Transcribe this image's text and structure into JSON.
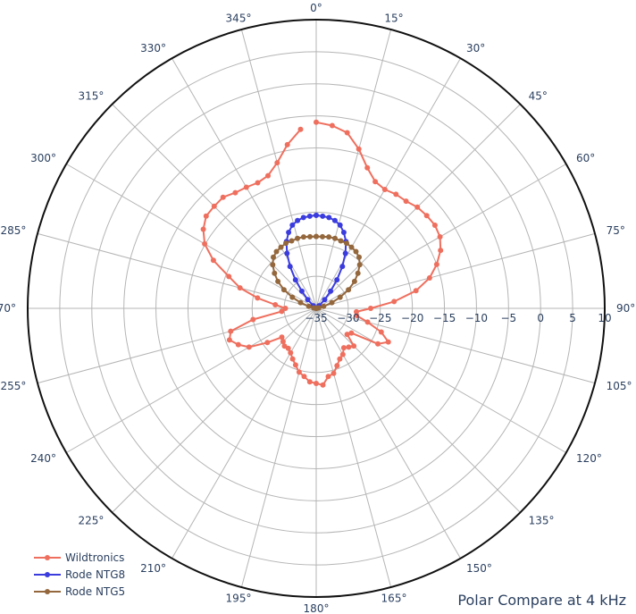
{
  "chart_data": {
    "type": "polar-line",
    "title": "Polar Compare at 4 kHz",
    "angular_axis": {
      "direction": "clockwise",
      "rotation_zero": "top",
      "tick_labels": [
        "0°",
        "15°",
        "30°",
        "45°",
        "60°",
        "75°",
        "90°",
        "105°",
        "120°",
        "135°",
        "150°",
        "165°",
        "180°",
        "195°",
        "210°",
        "225°",
        "240°",
        "255°",
        "270°",
        "285°",
        "300°",
        "315°",
        "330°",
        "345°"
      ]
    },
    "radial_axis": {
      "range": [
        -35,
        10
      ],
      "tick_values": [
        -35,
        -30,
        -25,
        -20,
        -15,
        -10,
        -5,
        0,
        5,
        10
      ],
      "tick_labels": [
        "−35",
        "−30",
        "−25",
        "−20",
        "−15",
        "−10",
        "−5",
        "0",
        "5",
        "10"
      ],
      "grid": true
    },
    "legend": {
      "placement": "bottom-left"
    },
    "series": [
      {
        "name": "Wildtronics",
        "color": "#ef6f5e",
        "points": [
          [
            0,
            -6
          ],
          [
            5,
            -6.4
          ],
          [
            10,
            -7.2
          ],
          [
            15,
            -9.3
          ],
          [
            20,
            -11.7
          ],
          [
            25,
            -13.2
          ],
          [
            30,
            -13.6
          ],
          [
            35,
            -13.3
          ],
          [
            40,
            -13.2
          ],
          [
            45,
            -12.7
          ],
          [
            50,
            -12.5
          ],
          [
            55,
            -12.4
          ],
          [
            60,
            -12.7
          ],
          [
            65,
            -13.6
          ],
          [
            70,
            -15
          ],
          [
            75,
            -16.7
          ],
          [
            80,
            -19.2
          ],
          [
            85,
            -22.8
          ],
          [
            90,
            -26.5
          ],
          [
            95,
            -28.7
          ],
          [
            100,
            -28.6
          ],
          [
            105,
            -26.7
          ],
          [
            110,
            -24.2
          ],
          [
            115,
            -22.6
          ],
          [
            120,
            -23.9
          ],
          [
            125,
            -28.3
          ],
          [
            130,
            -28.7
          ],
          [
            135,
            -26.7
          ],
          [
            140,
            -27.1
          ],
          [
            145,
            -27.5
          ],
          [
            150,
            -26.7
          ],
          [
            155,
            -26.3
          ],
          [
            160,
            -25.5
          ],
          [
            165,
            -24.5
          ],
          [
            170,
            -24.2
          ],
          [
            175,
            -23
          ],
          [
            180,
            -23.3
          ],
          [
            185,
            -23.5
          ],
          [
            190,
            -24.2
          ],
          [
            195,
            -24.7
          ],
          [
            200,
            -25.6
          ],
          [
            205,
            -26.3
          ],
          [
            210,
            -27
          ],
          [
            215,
            -27.4
          ],
          [
            220,
            -27.3
          ],
          [
            225,
            -27.7
          ],
          [
            230,
            -28
          ],
          [
            235,
            -25.7
          ],
          [
            240,
            -22.9
          ],
          [
            245,
            -21.6
          ],
          [
            250,
            -20.6
          ],
          [
            255,
            -21.2
          ],
          [
            260,
            -25
          ],
          [
            265,
            -29.6
          ],
          [
            270,
            -30.2
          ],
          [
            275,
            -28.6
          ],
          [
            280,
            -25.7
          ],
          [
            285,
            -22.7
          ],
          [
            290,
            -20.5
          ],
          [
            295,
            -17.3
          ],
          [
            300,
            -14.9
          ],
          [
            305,
            -13.5
          ],
          [
            310,
            -12.6
          ],
          [
            315,
            -12.5
          ],
          [
            320,
            -12.4
          ],
          [
            325,
            -13
          ],
          [
            330,
            -13.2
          ],
          [
            335,
            -13.4
          ],
          [
            340,
            -13
          ],
          [
            345,
            -11.5
          ],
          [
            350,
            -9.1
          ],
          [
            355,
            -7
          ]
        ]
      },
      {
        "name": "Rode NTG8",
        "color": "#3b3cde",
        "points": [
          [
            0,
            -20.5
          ],
          [
            4,
            -20.6
          ],
          [
            8,
            -20.7
          ],
          [
            12,
            -21
          ],
          [
            16,
            -21.5
          ],
          [
            20,
            -22.4
          ],
          [
            24,
            -23.6
          ],
          [
            28,
            -25.3
          ],
          [
            32,
            -27.3
          ],
          [
            36,
            -29.5
          ],
          [
            40,
            -31.5
          ],
          [
            44,
            -33.1
          ],
          [
            48,
            -34.4
          ],
          [
            52,
            -35
          ],
          [
            308,
            -35
          ],
          [
            312,
            -34.4
          ],
          [
            316,
            -33.1
          ],
          [
            320,
            -31.5
          ],
          [
            324,
            -29.5
          ],
          [
            328,
            -27.3
          ],
          [
            332,
            -25.3
          ],
          [
            336,
            -23.6
          ],
          [
            340,
            -22.4
          ],
          [
            344,
            -21.5
          ],
          [
            348,
            -21
          ],
          [
            352,
            -20.7
          ],
          [
            356,
            -20.6
          ],
          [
            360,
            -20.5
          ]
        ]
      },
      {
        "name": "Rode NTG5",
        "color": "#94673c",
        "points": [
          [
            0,
            -23.8
          ],
          [
            5,
            -23.8
          ],
          [
            10,
            -23.7
          ],
          [
            15,
            -23.7
          ],
          [
            20,
            -23.8
          ],
          [
            25,
            -23.8
          ],
          [
            30,
            -24
          ],
          [
            35,
            -24.2
          ],
          [
            40,
            -24.6
          ],
          [
            45,
            -25.4
          ],
          [
            50,
            -26.5
          ],
          [
            55,
            -27.7
          ],
          [
            60,
            -29.2
          ],
          [
            65,
            -30.9
          ],
          [
            70,
            -32.4
          ],
          [
            75,
            -33.8
          ],
          [
            80,
            -34.6
          ],
          [
            85,
            -35
          ],
          [
            275,
            -35
          ],
          [
            280,
            -34.6
          ],
          [
            285,
            -33.8
          ],
          [
            290,
            -32.4
          ],
          [
            295,
            -30.9
          ],
          [
            300,
            -29.2
          ],
          [
            305,
            -27.7
          ],
          [
            310,
            -26.5
          ],
          [
            315,
            -25.4
          ],
          [
            320,
            -24.6
          ],
          [
            325,
            -24.2
          ],
          [
            330,
            -24
          ],
          [
            335,
            -23.8
          ],
          [
            340,
            -23.8
          ],
          [
            345,
            -23.7
          ],
          [
            350,
            -23.7
          ],
          [
            355,
            -23.8
          ],
          [
            360,
            -23.8
          ]
        ]
      }
    ]
  }
}
